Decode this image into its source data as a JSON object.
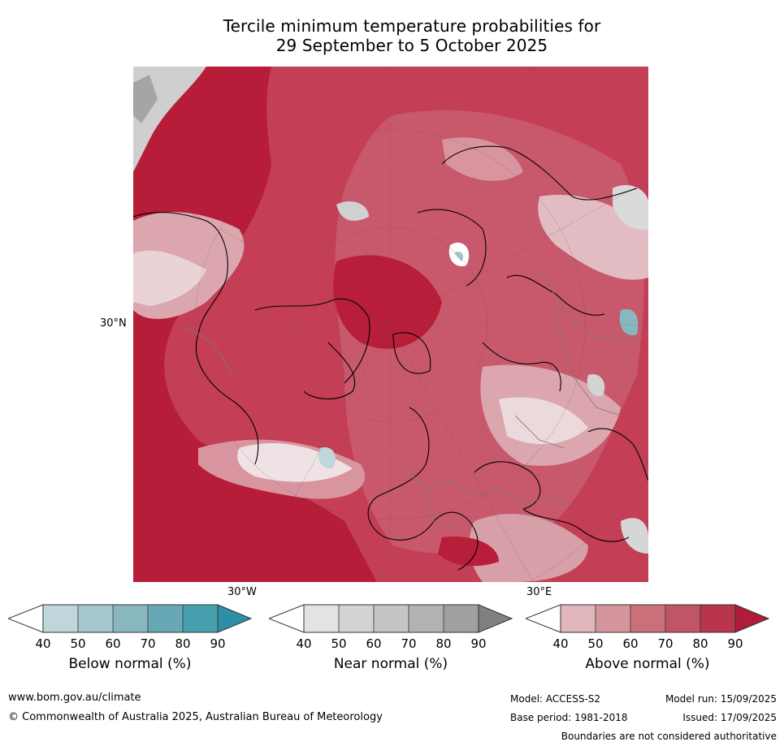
{
  "title_line1": "Tercile minimum temperature probabilities for",
  "title_line2": "29 September to 5 October 2025",
  "axis": {
    "lat": "30°N",
    "lon_left": "30°W",
    "lon_right": "30°E"
  },
  "colorbars": [
    {
      "label": "Below normal (%)",
      "ticks": [
        "40",
        "50",
        "60",
        "70",
        "80",
        "90"
      ],
      "colors": [
        "#bfd6db",
        "#a6c8cd",
        "#88b7c0",
        "#68a8b5",
        "#47a0ad"
      ],
      "extend_color": "#2c8fa5"
    },
    {
      "label": "Near normal (%)",
      "ticks": [
        "40",
        "50",
        "60",
        "70",
        "80",
        "90"
      ],
      "colors": [
        "#e3e3e3",
        "#d3d3d3",
        "#c5c5c5",
        "#b3b3b3",
        "#a0a0a0"
      ],
      "extend_color": "#808080"
    },
    {
      "label": "Above normal (%)",
      "ticks": [
        "40",
        "50",
        "60",
        "70",
        "80",
        "90"
      ],
      "colors": [
        "#e0b6bc",
        "#d4959d",
        "#c97079",
        "#c05567",
        "#b8354b"
      ],
      "extend_color": "#b01c3a"
    }
  ],
  "footer": {
    "website": "www.bom.gov.au/climate",
    "copyright": "© Commonwealth of Australia 2025, Australian Bureau of Meteorology",
    "model": "Model: ACCESS-S2",
    "model_run": "Model run: 15/09/2025",
    "base_period": "Base period: 1981-2018",
    "issued": "Issued: 17/09/2025",
    "disclaimer": "Boundaries are not considered authoritative"
  }
}
